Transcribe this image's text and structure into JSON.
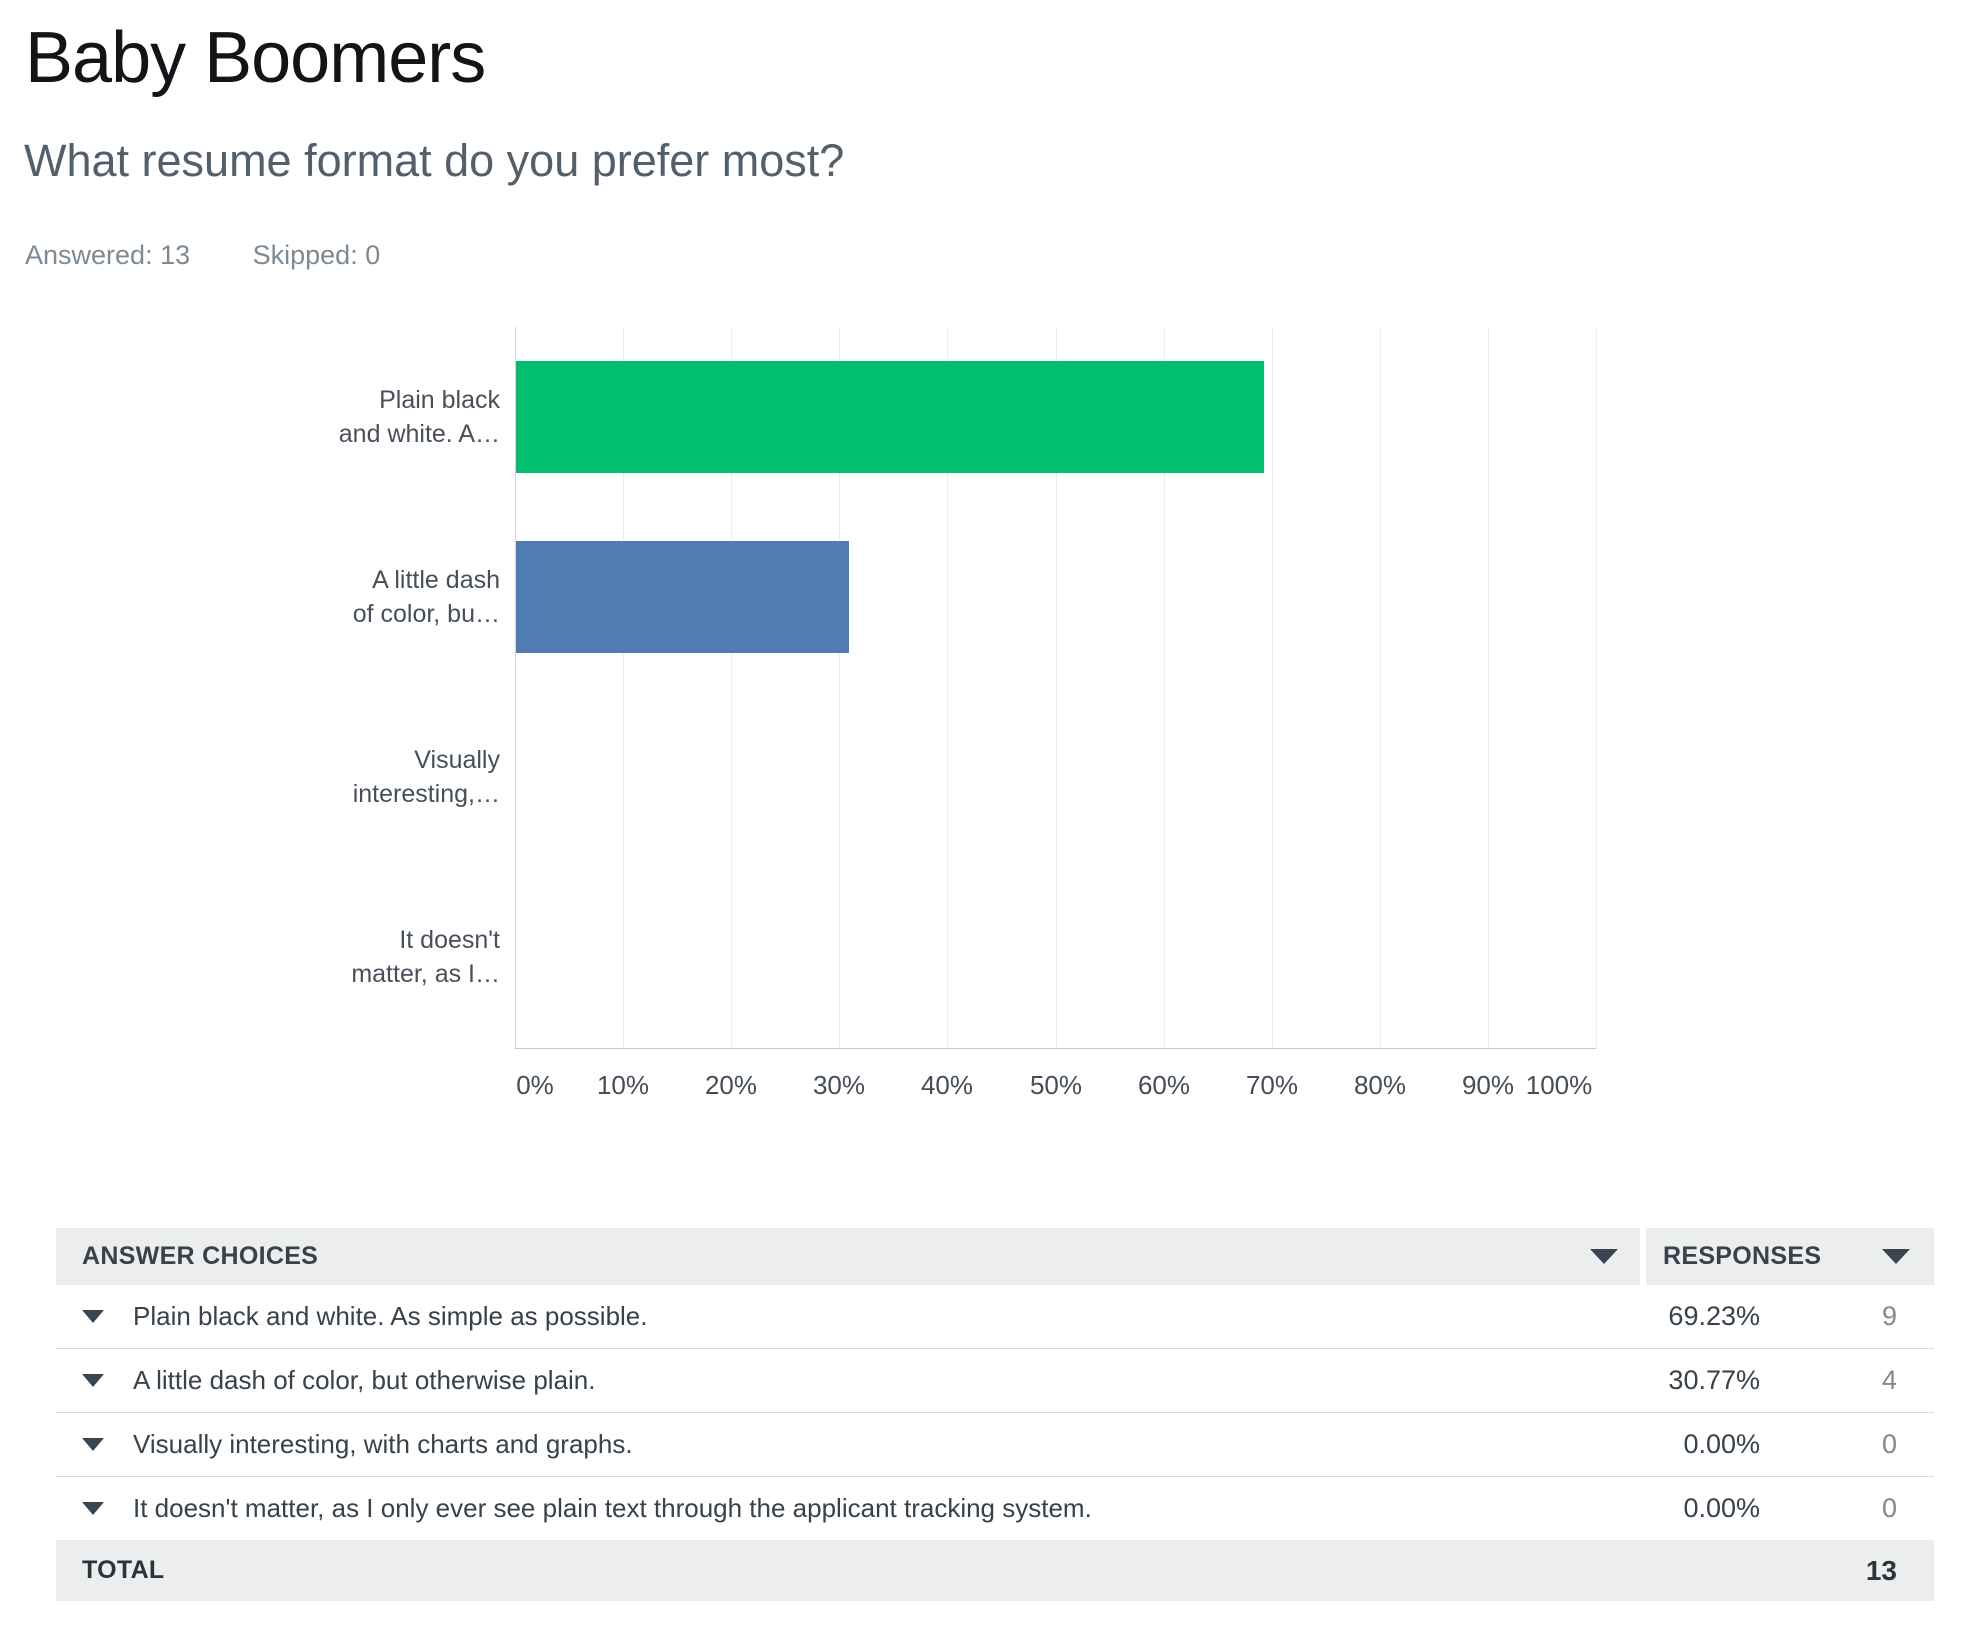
{
  "header": {
    "title": "Baby Boomers",
    "question": "What resume format do you prefer most?",
    "answered_label": "Answered: 13",
    "skipped_label": "Skipped: 0"
  },
  "chart_data": {
    "type": "bar",
    "orientation": "horizontal",
    "title": "What resume format do you prefer most?",
    "categories": [
      "Plain black and white. As simple as possible.",
      "A little dash of color, but otherwise plain.",
      "Visually interesting, with charts and graphs.",
      "It doesn't matter, as I only ever see plain text through the applicant tracking system."
    ],
    "display_labels": [
      [
        "Plain black",
        "and white. A…"
      ],
      [
        "A little dash",
        "of color, bu…"
      ],
      [
        "Visually",
        "interesting,…"
      ],
      [
        "It doesn't",
        "matter, as I…"
      ]
    ],
    "values": [
      69.23,
      30.77,
      0,
      0
    ],
    "bar_colors": [
      "#00BF6F",
      "#507CB4",
      null,
      null
    ],
    "xlim": [
      0,
      100
    ],
    "x_ticks": [
      "0%",
      "10%",
      "20%",
      "30%",
      "40%",
      "50%",
      "60%",
      "70%",
      "80%",
      "90%",
      "100%"
    ],
    "grid": true,
    "legend": false
  },
  "table": {
    "columns": [
      "ANSWER CHOICES",
      "RESPONSES"
    ],
    "rows": [
      {
        "label": "Plain black and white. As simple as possible.",
        "percent": "69.23%",
        "count": "9"
      },
      {
        "label": "A little dash of color, but otherwise plain.",
        "percent": "30.77%",
        "count": "4"
      },
      {
        "label": "Visually interesting, with charts and graphs.",
        "percent": "0.00%",
        "count": "0"
      },
      {
        "label": "It doesn't matter, as I only ever see plain text through the applicant tracking system.",
        "percent": "0.00%",
        "count": "0"
      }
    ],
    "total_label": "TOTAL",
    "total_count": "13"
  },
  "colors": {
    "bar_green": "#00BF6F",
    "bar_blue": "#507CB4",
    "table_header_bg": "#ECEEEE",
    "dark_text": "#37424C",
    "muted_text": "#7D8A93"
  }
}
